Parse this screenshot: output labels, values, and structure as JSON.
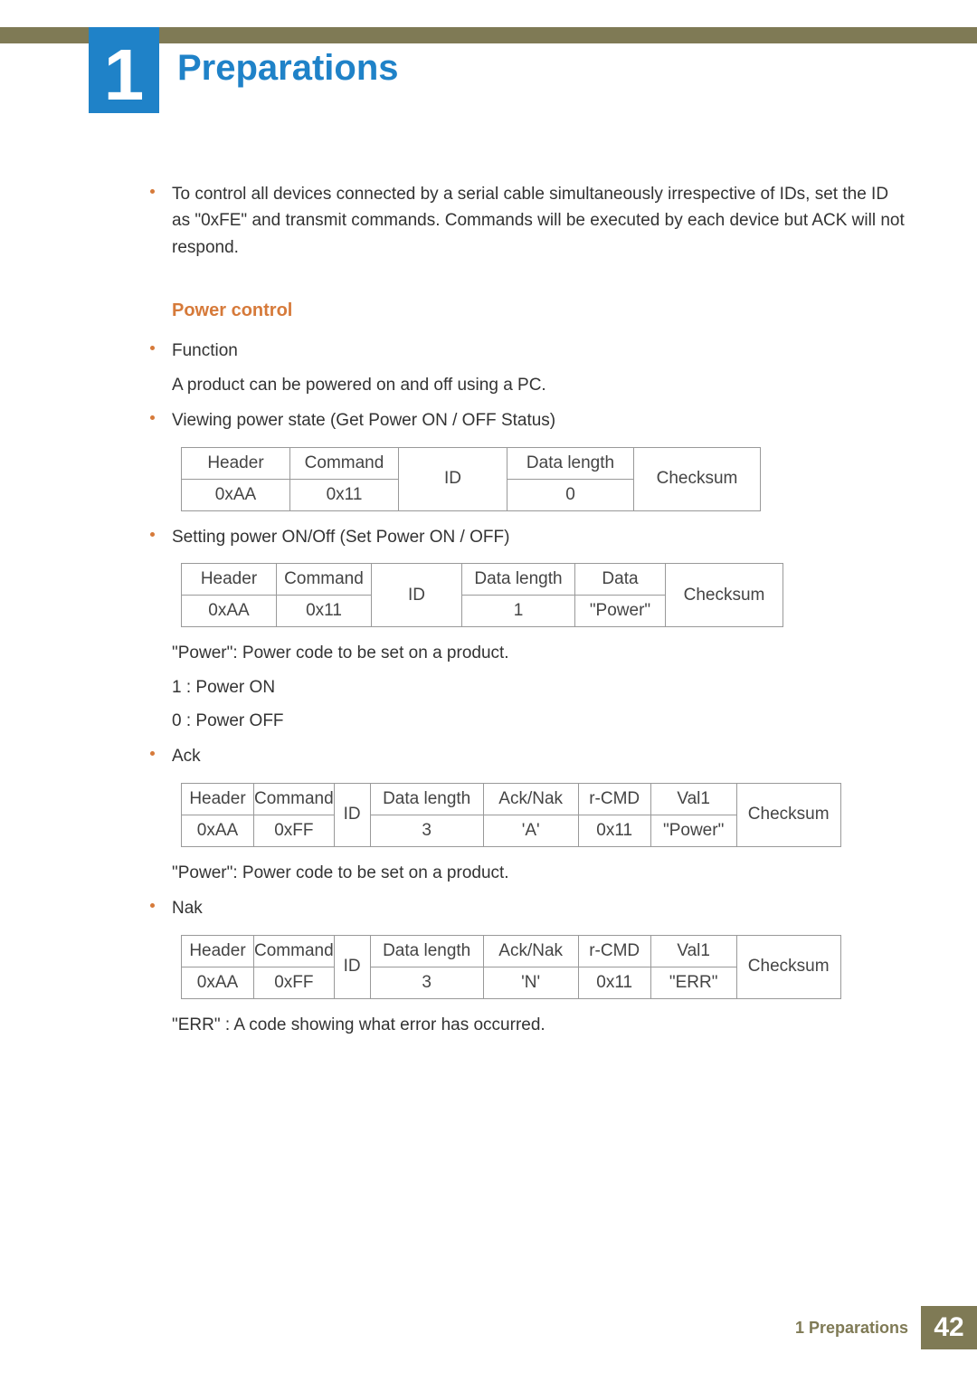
{
  "chapter_number": "1",
  "page_title": "Preparations",
  "intro_bullet": "To control all devices connected by a serial cable simultaneously irrespective of IDs, set the ID as \"0xFE\" and transmit commands. Commands will be executed by each device but ACK will not respond.",
  "section_title": "Power control",
  "bullets": {
    "function": "Function",
    "function_desc": "A product can be powered on and off using a PC.",
    "viewing": "Viewing power state (Get Power ON / OFF Status)",
    "setting": "Setting power ON/Off (Set Power ON / OFF)",
    "ack": "Ack",
    "nak": "Nak"
  },
  "notes": {
    "power_note": "\"Power\": Power code to be set on a product.",
    "power_on": "1 : Power ON",
    "power_off": "0 : Power OFF",
    "err_note": "\"ERR\" : A code showing what error has occurred."
  },
  "table_get": {
    "widths": [
      120,
      120,
      120,
      140,
      140
    ],
    "r0": [
      "Header",
      "Command",
      "ID",
      "Data length",
      "Checksum"
    ],
    "r1": [
      "0xAA",
      "0x11",
      "",
      "0",
      ""
    ]
  },
  "table_set": {
    "widths": [
      105,
      105,
      100,
      125,
      100,
      130
    ],
    "r0": [
      "Header",
      "Command",
      "ID",
      "Data length",
      "Data",
      "Checksum"
    ],
    "r1": [
      "0xAA",
      "0x11",
      "",
      "1",
      "\"Power\"",
      ""
    ]
  },
  "table_ack": {
    "widths": [
      80,
      85,
      40,
      125,
      105,
      80,
      95,
      115
    ],
    "r0": [
      "Header",
      "Command",
      "ID",
      "Data length",
      "Ack/Nak",
      "r-CMD",
      "Val1",
      "Checksum"
    ],
    "r1": [
      "0xAA",
      "0xFF",
      "",
      "3",
      "'A'",
      "0x11",
      "\"Power\"",
      ""
    ]
  },
  "table_nak": {
    "widths": [
      80,
      85,
      40,
      125,
      105,
      80,
      95,
      115
    ],
    "r0": [
      "Header",
      "Command",
      "ID",
      "Data length",
      "Ack/Nak",
      "r-CMD",
      "Val1",
      "Checksum"
    ],
    "r1": [
      "0xAA",
      "0xFF",
      "",
      "3",
      "'N'",
      "0x11",
      "\"ERR\"",
      ""
    ]
  },
  "footer": {
    "text": "1 Preparations",
    "page": "42"
  },
  "colors": {
    "accent_blue": "#1f82c8",
    "accent_orange": "#d67a3a",
    "olive": "#7f7a55",
    "border": "#999999",
    "text": "#333333",
    "background": "#ffffff"
  }
}
